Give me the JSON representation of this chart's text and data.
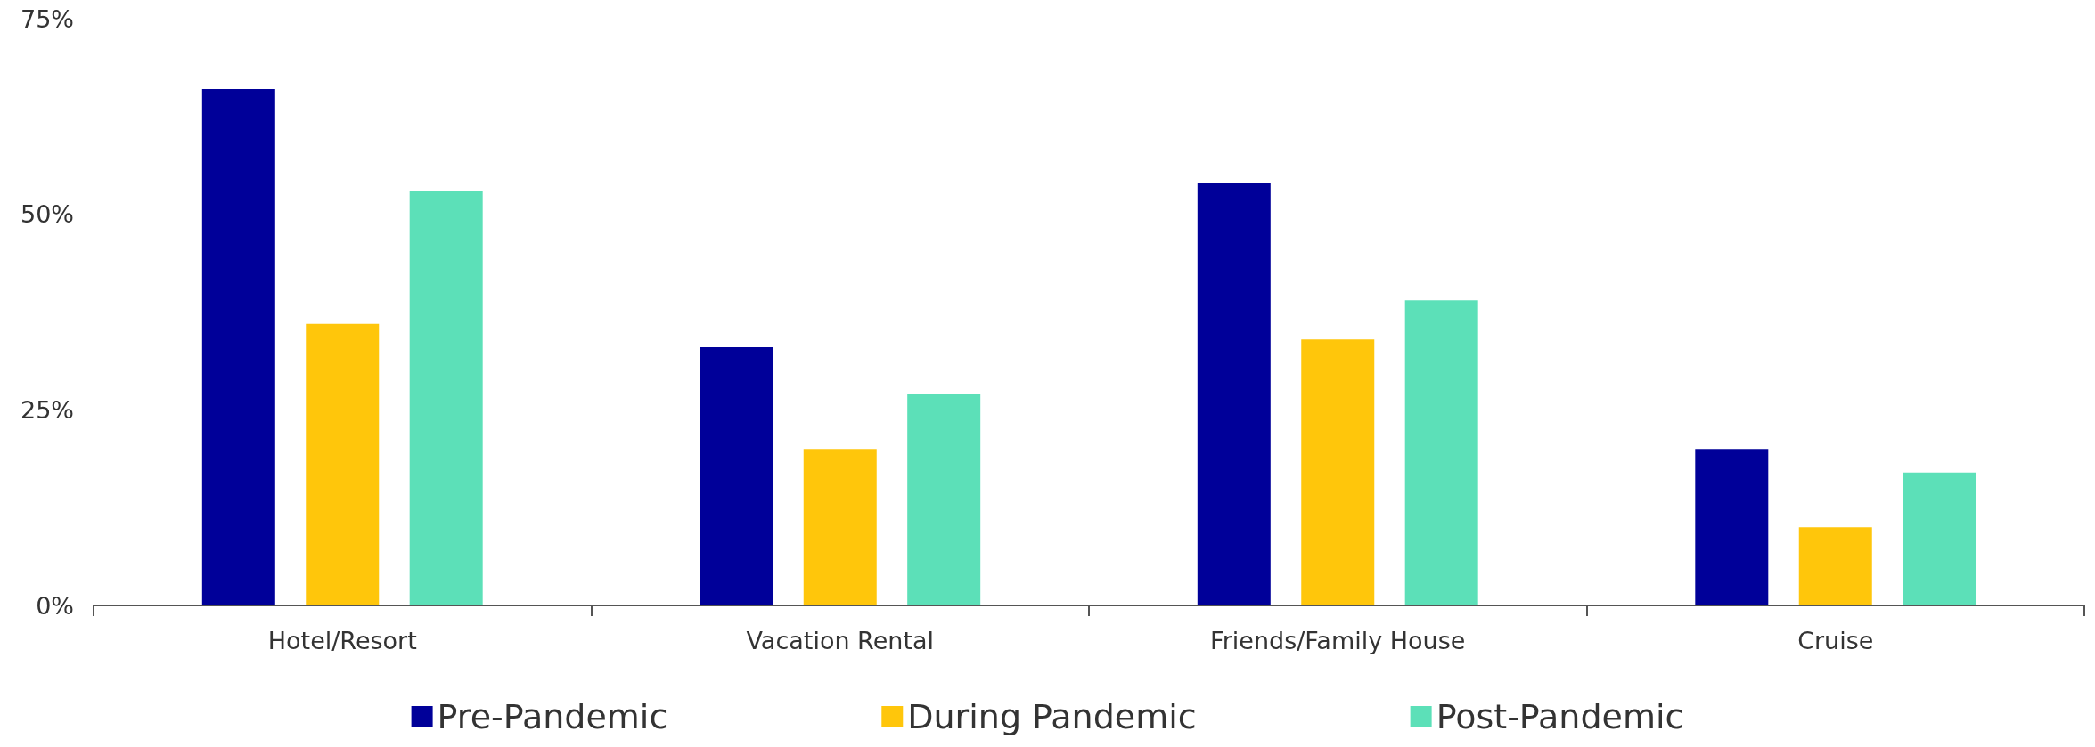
{
  "chart_data": {
    "type": "bar",
    "categories": [
      "Hotel/Resort",
      "Vacation Rental",
      "Friends/Family House",
      "Cruise"
    ],
    "series": [
      {
        "name": "Pre-Pandemic",
        "color": "#000099",
        "values": [
          66,
          33,
          54,
          20
        ]
      },
      {
        "name": "During Pandemic",
        "color": "#ffc60b",
        "values": [
          36,
          20,
          34,
          10
        ]
      },
      {
        "name": "Post-Pandemic",
        "color": "#5ce0b8",
        "values": [
          53,
          27,
          39,
          17
        ]
      }
    ],
    "ylim": [
      0,
      75
    ],
    "yticks": [
      {
        "value": 0,
        "label": "0%"
      },
      {
        "value": 25,
        "label": "25%"
      },
      {
        "value": 50,
        "label": "50%"
      },
      {
        "value": 75,
        "label": "75%"
      }
    ],
    "grid": false,
    "legend": "bottom"
  }
}
